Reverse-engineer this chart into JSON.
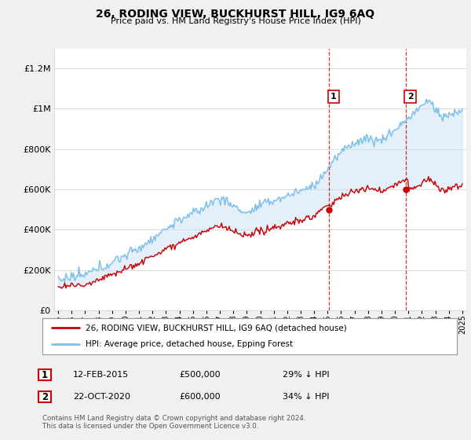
{
  "title": "26, RODING VIEW, BUCKHURST HILL, IG9 6AQ",
  "subtitle": "Price paid vs. HM Land Registry's House Price Index (HPI)",
  "legend_line1": "26, RODING VIEW, BUCKHURST HILL, IG9 6AQ (detached house)",
  "legend_line2": "HPI: Average price, detached house, Epping Forest",
  "sale1_date": "12-FEB-2015",
  "sale1_price": "£500,000",
  "sale1_hpi": "29% ↓ HPI",
  "sale2_date": "22-OCT-2020",
  "sale2_price": "£600,000",
  "sale2_hpi": "34% ↓ HPI",
  "footer": "Contains HM Land Registry data © Crown copyright and database right 2024.\nThis data is licensed under the Open Government Licence v3.0.",
  "hpi_color": "#7bbfea",
  "hpi_fill_color": "#c8e0f4",
  "price_color": "#cc0000",
  "sale1_x": 2015.12,
  "sale1_y": 500000,
  "sale2_x": 2020.81,
  "sale2_y": 600000,
  "vline1_x": 2015.12,
  "vline2_x": 2020.81,
  "xlim_left": 1994.7,
  "xlim_right": 2025.3,
  "ylim_bottom": 0,
  "ylim_top": 1300000,
  "background_color": "#f0f0f0",
  "plot_bg_color": "#ffffff",
  "yticks": [
    0,
    200000,
    400000,
    600000,
    800000,
    1000000,
    1200000
  ],
  "ytick_labels": [
    "£0",
    "£200K",
    "£400K",
    "£600K",
    "£800K",
    "£1M",
    "£1.2M"
  ]
}
